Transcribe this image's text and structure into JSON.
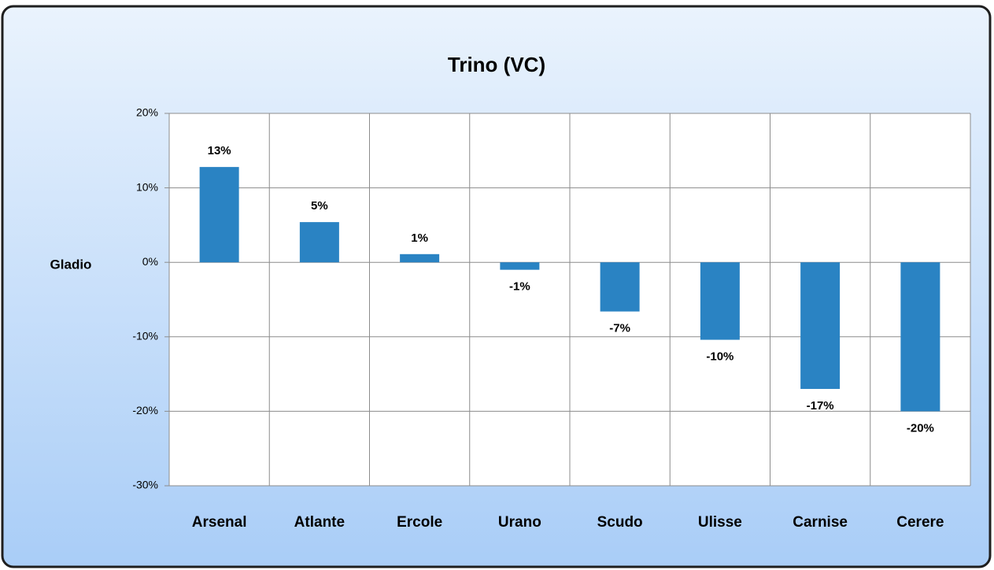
{
  "chart_data": {
    "type": "bar",
    "title": "Trino (VC)",
    "y_label": "Gladio",
    "categories": [
      "Arsenal",
      "Atlante",
      "Ercole",
      "Urano",
      "Scudo",
      "Ulisse",
      "Carnise",
      "Cerere"
    ],
    "values": [
      12.8,
      5.4,
      1.1,
      -1.0,
      -6.6,
      -10.4,
      -17.0,
      -20.0
    ],
    "value_labels": [
      "13%",
      "5%",
      "1%",
      "-1%",
      "-7%",
      "-10%",
      "-17%",
      "-20%"
    ],
    "color": "#2a83c3",
    "ylim": [
      -30,
      20
    ],
    "yticks": [
      {
        "value": -30,
        "label": "-30%"
      },
      {
        "value": -20,
        "label": "-20%"
      },
      {
        "value": -10,
        "label": "-10%"
      },
      {
        "value": 0,
        "label": "0%"
      },
      {
        "value": 10,
        "label": "10%"
      },
      {
        "value": 20,
        "label": "20%"
      }
    ],
    "grid": true
  }
}
